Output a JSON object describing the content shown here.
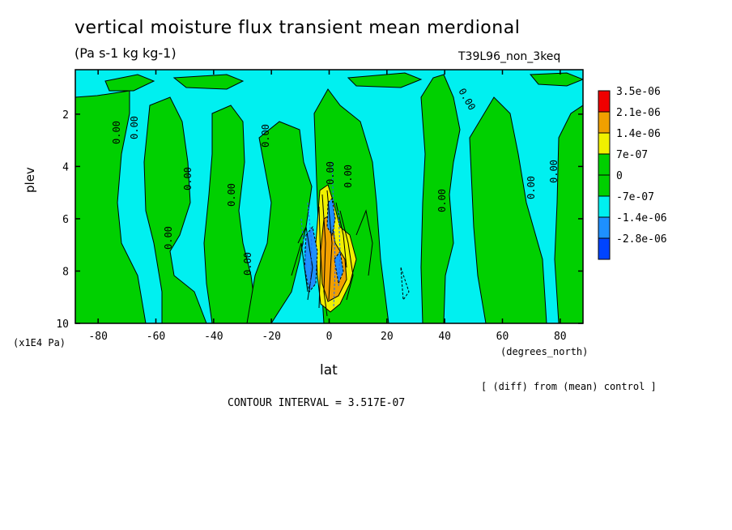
{
  "chart_data": {
    "type": "heatmap",
    "title": "vertical moisture flux transient mean merdional",
    "units": "(Pa s-1 kg kg-1)",
    "run_label": "T39L96_non_3keq",
    "xlabel": "lat",
    "ylabel": "plev",
    "x_units": "(degrees_north)",
    "y_units": "(x1E4 Pa)",
    "x_ticks": [
      "-80",
      "-60",
      "-40",
      "-20",
      "0",
      "20",
      "40",
      "60",
      "80"
    ],
    "x_tick_values": [
      -80,
      -60,
      -40,
      -20,
      0,
      20,
      40,
      60,
      80
    ],
    "y_ticks": [
      "2",
      "4",
      "6",
      "8",
      "10"
    ],
    "y_tick_values": [
      2,
      4,
      6,
      8,
      10
    ],
    "xlim": [
      -87.9,
      87.9
    ],
    "ylim": [
      10,
      0.3
    ],
    "legend": {
      "position": "right",
      "labels": [
        "3.5e-06",
        "2.1e-06",
        "1.4e-06",
        "7e-07",
        "0",
        "-7e-07",
        "-1.4e-06",
        "-2.8e-06"
      ],
      "colors": [
        "#f00000",
        "#f0a000",
        "#f0f000",
        "#00d000",
        "#00d000",
        "#00f0f0",
        "#1e90ff",
        "#0044ff"
      ]
    },
    "contour_label": "0.00",
    "contour_interval": "CONTOUR INTERVAL = 3.517E-07",
    "note": "[ (diff) from (mean) control ]",
    "colors": {
      "background_negative": "#00f0f0",
      "zero_band": "#00d000",
      "positive_low": "#f0f000",
      "positive_mid": "#f0a000",
      "negative_mid": "#1e90ff"
    }
  }
}
